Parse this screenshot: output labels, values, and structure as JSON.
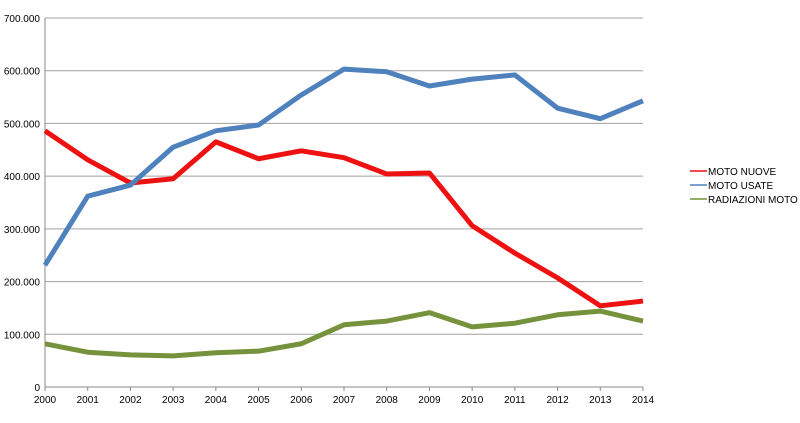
{
  "chart_data": {
    "type": "line",
    "title": "",
    "xlabel": "",
    "ylabel": "",
    "x": [
      "2000",
      "2001",
      "2002",
      "2003",
      "2004",
      "2005",
      "2006",
      "2007",
      "2008",
      "2009",
      "2010",
      "2011",
      "2012",
      "2013",
      "2014"
    ],
    "ylim": [
      0,
      700000
    ],
    "yticks": [
      0,
      100000,
      200000,
      300000,
      400000,
      500000,
      600000,
      700000
    ],
    "ytick_labels": [
      "0",
      "100.000",
      "200.000",
      "300.000",
      "400.000",
      "500.000",
      "600.000",
      "700.000"
    ],
    "grid": "horizontal",
    "legend_position": "right",
    "series": [
      {
        "name": "MOTO NUOVE",
        "color": "#ee1111",
        "values": [
          486000,
          431000,
          387000,
          395000,
          465000,
          433000,
          448000,
          435000,
          404000,
          406000,
          306000,
          254000,
          207000,
          154000,
          163000
        ]
      },
      {
        "name": "MOTO USATE",
        "color": "#4f81bd",
        "values": [
          231000,
          362000,
          383000,
          455000,
          486000,
          497000,
          554000,
          603000,
          598000,
          571000,
          584000,
          592000,
          529000,
          509000,
          543000
        ]
      },
      {
        "name": "RADIAZIONI MOTO",
        "color": "#76923c",
        "values": [
          82000,
          66000,
          61000,
          59000,
          65000,
          68000,
          82000,
          118000,
          125000,
          141000,
          114000,
          121000,
          137000,
          144000,
          125000
        ]
      }
    ]
  }
}
